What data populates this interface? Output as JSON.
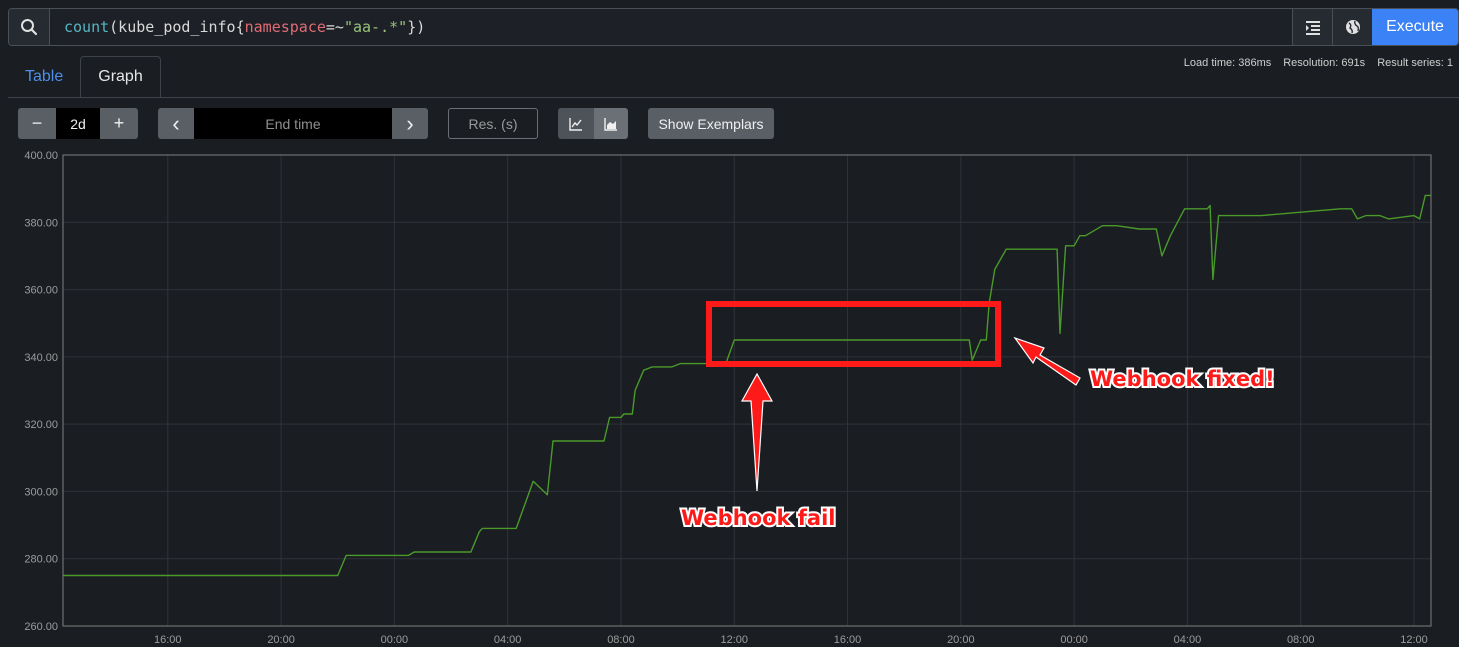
{
  "query": {
    "tokens": [
      {
        "text": "count",
        "kind": "fn"
      },
      {
        "text": "(kube_pod_info{",
        "kind": "plain"
      },
      {
        "text": "namespace",
        "kind": "label"
      },
      {
        "text": "=~",
        "kind": "plain"
      },
      {
        "text": "\"aa-.*\"",
        "kind": "str"
      },
      {
        "text": "})",
        "kind": "plain"
      }
    ],
    "search_icon": "search-icon",
    "format_icon": "format-query-icon",
    "metrics_icon": "globe-icon",
    "execute_label": "Execute"
  },
  "tabs": {
    "table": "Table",
    "graph": "Graph"
  },
  "stats": {
    "load_time": "Load time: 386ms",
    "resolution": "Resolution: 691s",
    "result_series": "Result series: 1"
  },
  "controls": {
    "minus": "−",
    "range": "2d",
    "plus": "+",
    "prev": "‹",
    "end_time_placeholder": "End time",
    "next": "›",
    "res_placeholder": "Res. (s)",
    "exemplars_label": "Show Exemplars",
    "line_icon": "line-chart-icon",
    "stacked_icon": "stacked-chart-icon"
  },
  "colors": {
    "series": "#4a9a2a",
    "annotation": "#ff1a1a",
    "grid": "#2f333a",
    "axis": "#707070"
  },
  "chart_data": {
    "type": "line",
    "ylim": [
      260,
      400
    ],
    "y_ticks": [
      "260.00",
      "280.00",
      "300.00",
      "320.00",
      "340.00",
      "360.00",
      "380.00",
      "400.00"
    ],
    "x_ticks": [
      "16:00",
      "20:00",
      "00:00",
      "04:00",
      "08:00",
      "12:00",
      "16:00",
      "20:00",
      "00:00",
      "04:00",
      "08:00",
      "12:00"
    ],
    "x_tick_hours": [
      16,
      20,
      24,
      28,
      32,
      36,
      40,
      44,
      48,
      52,
      56,
      60
    ],
    "xlim_hours": [
      12.3,
      60.6
    ],
    "series": [
      {
        "x": [
          12.3,
          22.0,
          22.3,
          24.5,
          24.7,
          25.7,
          26.7,
          27.0,
          27.1,
          28.0,
          28.3,
          28.9,
          29.4,
          29.6,
          31.4,
          31.6,
          32.0,
          32.1,
          32.4,
          32.5,
          32.8,
          33.1,
          33.3,
          33.8,
          34.1,
          35.7,
          36.0,
          36.0,
          44.3,
          44.4,
          44.7,
          44.9,
          45.0,
          45.2,
          45.6,
          46.0,
          47.4,
          47.5,
          47.7,
          48.0,
          48.2,
          48.4,
          49.0,
          49.5,
          50.3,
          50.4,
          50.5,
          50.9,
          51.1,
          51.4,
          51.9,
          52.0,
          52.7,
          52.8,
          52.9,
          53.1,
          54.5,
          54.6,
          57.4,
          57.8,
          58.0,
          58.3,
          58.8,
          59.1,
          60.0,
          60.2,
          60.4,
          60.6
        ],
        "y": [
          275,
          275,
          281,
          281,
          282,
          282,
          282,
          288,
          289,
          289,
          289,
          303,
          299,
          315,
          315,
          322,
          322,
          323,
          323,
          330,
          336,
          337,
          337,
          337,
          338,
          338,
          345,
          345,
          345,
          339,
          345,
          345,
          356,
          366,
          372,
          372,
          372,
          347,
          373,
          373,
          376,
          376,
          379,
          379,
          378,
          378,
          378,
          378,
          370,
          376,
          384,
          384,
          384,
          385,
          363,
          382,
          382,
          382,
          384,
          384,
          381,
          382,
          382,
          381,
          382,
          381,
          388,
          388
        ]
      }
    ],
    "annotations": [
      {
        "text": "Webhook fail"
      },
      {
        "text": "Webhook fixed!"
      }
    ]
  }
}
